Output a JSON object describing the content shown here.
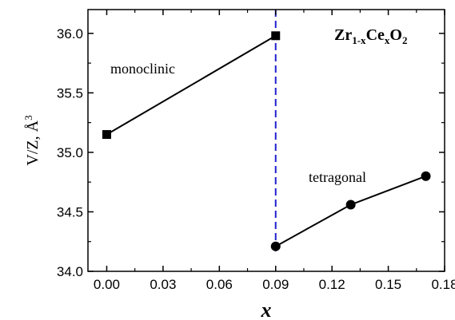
{
  "chart_data": {
    "type": "line",
    "title": "",
    "xlabel": "x",
    "ylabel": "V/Z, Å",
    "ylabel_superscript": "3",
    "xlim": [
      -0.01,
      0.18
    ],
    "ylim": [
      34.0,
      36.2
    ],
    "xticks": [
      0.0,
      0.03,
      0.06,
      0.09,
      0.12,
      0.15,
      0.18
    ],
    "xtick_labels": [
      "0.00",
      "0.03",
      "0.06",
      "0.09",
      "0.12",
      "0.15",
      "0.18"
    ],
    "yticks": [
      34.0,
      34.5,
      35.0,
      35.5,
      36.0
    ],
    "ytick_labels": [
      "34.0",
      "34.5",
      "35.0",
      "35.5",
      "36.0"
    ],
    "grid": false,
    "series": [
      {
        "name": "monoclinic",
        "marker": "square",
        "color": "#000000",
        "points": [
          {
            "x": 0.0,
            "y": 35.15
          },
          {
            "x": 0.09,
            "y": 35.98
          }
        ]
      },
      {
        "name": "tetragonal",
        "marker": "circle",
        "color": "#000000",
        "points": [
          {
            "x": 0.09,
            "y": 34.21
          },
          {
            "x": 0.13,
            "y": 34.56
          },
          {
            "x": 0.17,
            "y": 34.8
          }
        ]
      }
    ],
    "vline": {
      "x": 0.09,
      "color": "#1f1fd0",
      "style": "dashed"
    },
    "formula": {
      "parts": [
        {
          "t": "Zr",
          "sub": false
        },
        {
          "t": "1-x",
          "sub": true
        },
        {
          "t": "Ce",
          "sub": false
        },
        {
          "t": "x",
          "sub": true
        },
        {
          "t": "O",
          "sub": false
        },
        {
          "t": "2",
          "sub": true
        }
      ]
    }
  }
}
